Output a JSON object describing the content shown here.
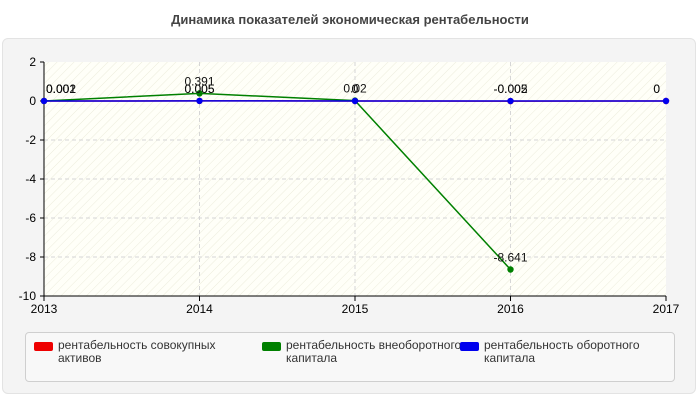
{
  "chart_data": {
    "type": "line",
    "title": "Динамика показателей экономическая рентабельности",
    "xlabel": "",
    "ylabel": "",
    "x": [
      2013,
      2014,
      2015,
      2016,
      2017
    ],
    "xlim": [
      2013,
      2017
    ],
    "ylim": [
      -10,
      2
    ],
    "yticks": [
      2,
      0,
      -2,
      -4,
      -6,
      -8,
      -10
    ],
    "grid": true,
    "legend_position": "bottom",
    "series": [
      {
        "name": "рентабельность совокупных активов",
        "color": "#ee0000",
        "values": [
          0.001,
          0.005,
          0,
          -0.005,
          0
        ],
        "labels": [
          "0.001",
          "0.005",
          "0",
          "-0.005",
          "0"
        ]
      },
      {
        "name": "рентабельность внеоборотного капитала",
        "color": "#008000",
        "values": [
          0.002,
          0.391,
          0.02,
          -8.641,
          null
        ],
        "labels": [
          "0.002",
          "0.391",
          "0.02",
          "-8.641",
          ""
        ]
      },
      {
        "name": "рентабельность оборотного капитала",
        "color": "#0000ee",
        "values": [
          0.001,
          0.005,
          0,
          -0.002,
          0
        ],
        "labels": [
          "0.001",
          "0.005",
          "0",
          "-0.002",
          "0"
        ]
      }
    ]
  }
}
